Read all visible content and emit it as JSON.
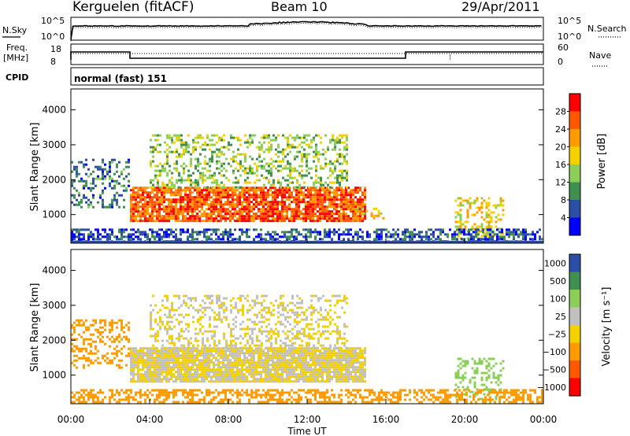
{
  "header": {
    "station": "Kerguelen (fitACF)",
    "beam": "Beam 10",
    "date": "29/Apr/2011"
  },
  "strip_noise": {
    "left_label": "N.Sky",
    "right_label": "N.Search",
    "left_ticks": [
      "10^5",
      "10^0"
    ],
    "right_ticks": [
      "10^5",
      "10^0"
    ]
  },
  "strip_freq": {
    "left_label_1": "Freq.",
    "left_label_2": "[MHz]",
    "right_label": "Nave",
    "left_ticks": [
      "18",
      "8"
    ],
    "right_ticks": [
      "60",
      "0"
    ]
  },
  "cpid": {
    "label": "CPID",
    "value": "normal (fast) 151"
  },
  "panels": {
    "ylabel": "Slant Range [km]",
    "yticks": [
      "4000",
      "3000",
      "2000",
      "1000"
    ],
    "xlabel": "Time UT",
    "xticks": [
      "00:00",
      "04:00",
      "08:00",
      "12:00",
      "16:00",
      "20:00",
      "00:00"
    ]
  },
  "power_colorbar": {
    "label": "Power [dB]",
    "ticks": [
      "28",
      "24",
      "20",
      "16",
      "12",
      "8",
      "4"
    ]
  },
  "velocity_colorbar": {
    "label": "Velocity [m s⁻¹]",
    "ticks": [
      "1000",
      "500",
      "100",
      "25",
      "−25",
      "−100",
      "−500",
      "−1000"
    ]
  },
  "chart_data": [
    {
      "type": "heatmap",
      "title": "Power",
      "xlabel": "Time UT",
      "ylabel": "Slant Range [km]",
      "x_range_hours": [
        0,
        24
      ],
      "y_range_km": [
        180,
        4600
      ],
      "colorbar_range_db": [
        0,
        32
      ],
      "colors": [
        "#0000ff",
        "#2b4ea6",
        "#3f8f4e",
        "#8bcf58",
        "#f5d000",
        "#ff9a00",
        "#ff5a00",
        "#ff0000"
      ],
      "echo_regions": [
        {
          "t0": 0.0,
          "t1": 3.0,
          "r0": 1200,
          "r1": 2600,
          "power_db": 8
        },
        {
          "t0": 3.0,
          "t1": 15.0,
          "r0": 850,
          "r1": 1800,
          "power_db": 26
        },
        {
          "t0": 4.0,
          "t1": 14.0,
          "r0": 1800,
          "r1": 3300,
          "power_db": 14
        },
        {
          "t0": 14.5,
          "t1": 16.0,
          "r0": 850,
          "r1": 1200,
          "power_db": 18
        },
        {
          "t0": 19.5,
          "t1": 22.0,
          "r0": 300,
          "r1": 1500,
          "power_db": 18
        },
        {
          "t0": 0.0,
          "t1": 24.0,
          "r0": 250,
          "r1": 600,
          "power_db": 6
        }
      ]
    },
    {
      "type": "heatmap",
      "title": "Velocity",
      "xlabel": "Time UT",
      "ylabel": "Slant Range [km]",
      "x_range_hours": [
        0,
        24
      ],
      "y_range_km": [
        180,
        4600
      ],
      "colorbar_levels_ms": [
        1000,
        500,
        100,
        25,
        -25,
        -100,
        -500,
        -1000
      ],
      "colors": [
        "#2b4ea6",
        "#3f8f4e",
        "#8bcf58",
        "#c0c0c0",
        "#f5d000",
        "#ff9a00",
        "#ff5a00",
        "#ff0000"
      ],
      "echo_regions": [
        {
          "t0": 0.0,
          "t1": 3.0,
          "r0": 1200,
          "r1": 2600,
          "velocity_ms": -100
        },
        {
          "t0": 3.0,
          "t1": 15.0,
          "r0": 850,
          "r1": 1800,
          "velocity_ms": 0
        },
        {
          "t0": 4.0,
          "t1": 14.0,
          "r0": 1800,
          "r1": 3300,
          "velocity_ms": 0
        },
        {
          "t0": 19.5,
          "t1": 22.0,
          "r0": 300,
          "r1": 1500,
          "velocity_ms": 100
        },
        {
          "t0": 0.0,
          "t1": 24.0,
          "r0": 250,
          "r1": 600,
          "velocity_ms": -100
        }
      ]
    }
  ]
}
